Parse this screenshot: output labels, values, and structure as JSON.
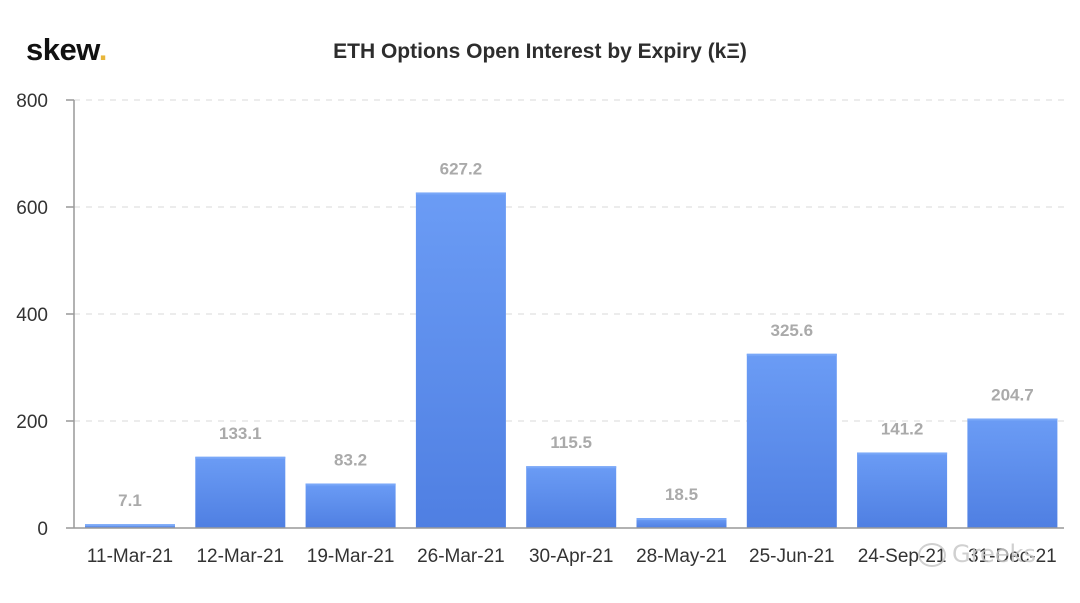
{
  "brand": {
    "name": "skew",
    "dot": "."
  },
  "chart_data": {
    "type": "bar",
    "title": "ETH Options Open Interest by Expiry (kΞ)",
    "xlabel": "",
    "ylabel": "",
    "categories": [
      "11-Mar-21",
      "12-Mar-21",
      "19-Mar-21",
      "26-Mar-21",
      "30-Apr-21",
      "28-May-21",
      "25-Jun-21",
      "24-Sep-21",
      "31-Dec-21"
    ],
    "values": [
      7.1,
      133.1,
      83.2,
      627.2,
      115.5,
      18.5,
      325.6,
      141.2,
      204.7
    ],
    "value_labels": [
      "7.1",
      "133.1",
      "83.2",
      "627.2",
      "115.5",
      "18.5",
      "325.6",
      "141.2",
      "204.7"
    ],
    "ylim": [
      0,
      800
    ],
    "yticks": [
      0,
      200,
      400,
      600,
      800
    ],
    "grid": true,
    "bar_color_top": "#6b9cf5",
    "bar_color_bottom": "#4f7fe2",
    "label_color": "#aaaaaa"
  },
  "watermark": {
    "text": "Greeks"
  }
}
